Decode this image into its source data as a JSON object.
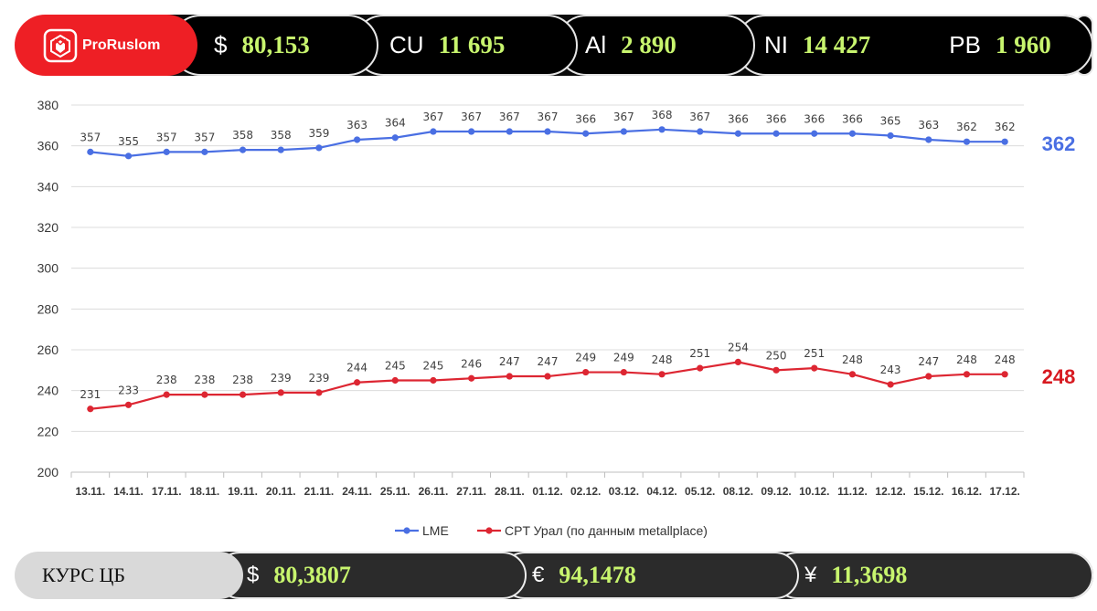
{
  "header": {
    "logo_text": "ProRuslom",
    "quotes": [
      {
        "symbol": "$",
        "value": "80,153"
      },
      {
        "symbol": "CU",
        "value": "11 695"
      },
      {
        "symbol": "Al",
        "value": "2 890"
      },
      {
        "symbol": "NI",
        "value": "14 427"
      },
      {
        "symbol": "PB",
        "value": "1 960"
      }
    ]
  },
  "chart_data": {
    "type": "line",
    "categories": [
      "13.11.",
      "14.11.",
      "17.11.",
      "18.11.",
      "19.11.",
      "20.11.",
      "21.11.",
      "24.11.",
      "25.11.",
      "26.11.",
      "27.11.",
      "28.11.",
      "01.12.",
      "02.12.",
      "03.12.",
      "04.12.",
      "05.12.",
      "08.12.",
      "09.12.",
      "10.12.",
      "11.12.",
      "12.12.",
      "15.12.",
      "16.12.",
      "17.12."
    ],
    "series": [
      {
        "name": "LME",
        "color": "#4a6fe3",
        "values": [
          357,
          355,
          357,
          357,
          358,
          358,
          359,
          363,
          364,
          367,
          367,
          367,
          367,
          366,
          367,
          368,
          367,
          366,
          366,
          366,
          366,
          365,
          363,
          362,
          362
        ],
        "last_label": "362",
        "last_color": "#4a6fe3"
      },
      {
        "name": "CPT  Урал (по данным metallplace)",
        "color": "#dd2632",
        "values": [
          231,
          233,
          238,
          238,
          238,
          239,
          239,
          244,
          245,
          245,
          246,
          247,
          247,
          249,
          249,
          248,
          251,
          254,
          250,
          251,
          248,
          243,
          247,
          248,
          248
        ],
        "last_label": "248",
        "last_color": "#d71920"
      }
    ],
    "yticks": [
      "200",
      "220",
      "240",
      "260",
      "280",
      "300",
      "320",
      "340",
      "360",
      "380"
    ],
    "ylim": [
      200,
      380
    ],
    "grid": true,
    "legend_position": "bottom"
  },
  "rates": {
    "title": "КУРС ЦБ",
    "items": [
      {
        "symbol": "$",
        "value": "80,3807"
      },
      {
        "symbol": "€",
        "value": "94,1478"
      },
      {
        "symbol": "¥",
        "value": "11,3698"
      }
    ]
  }
}
